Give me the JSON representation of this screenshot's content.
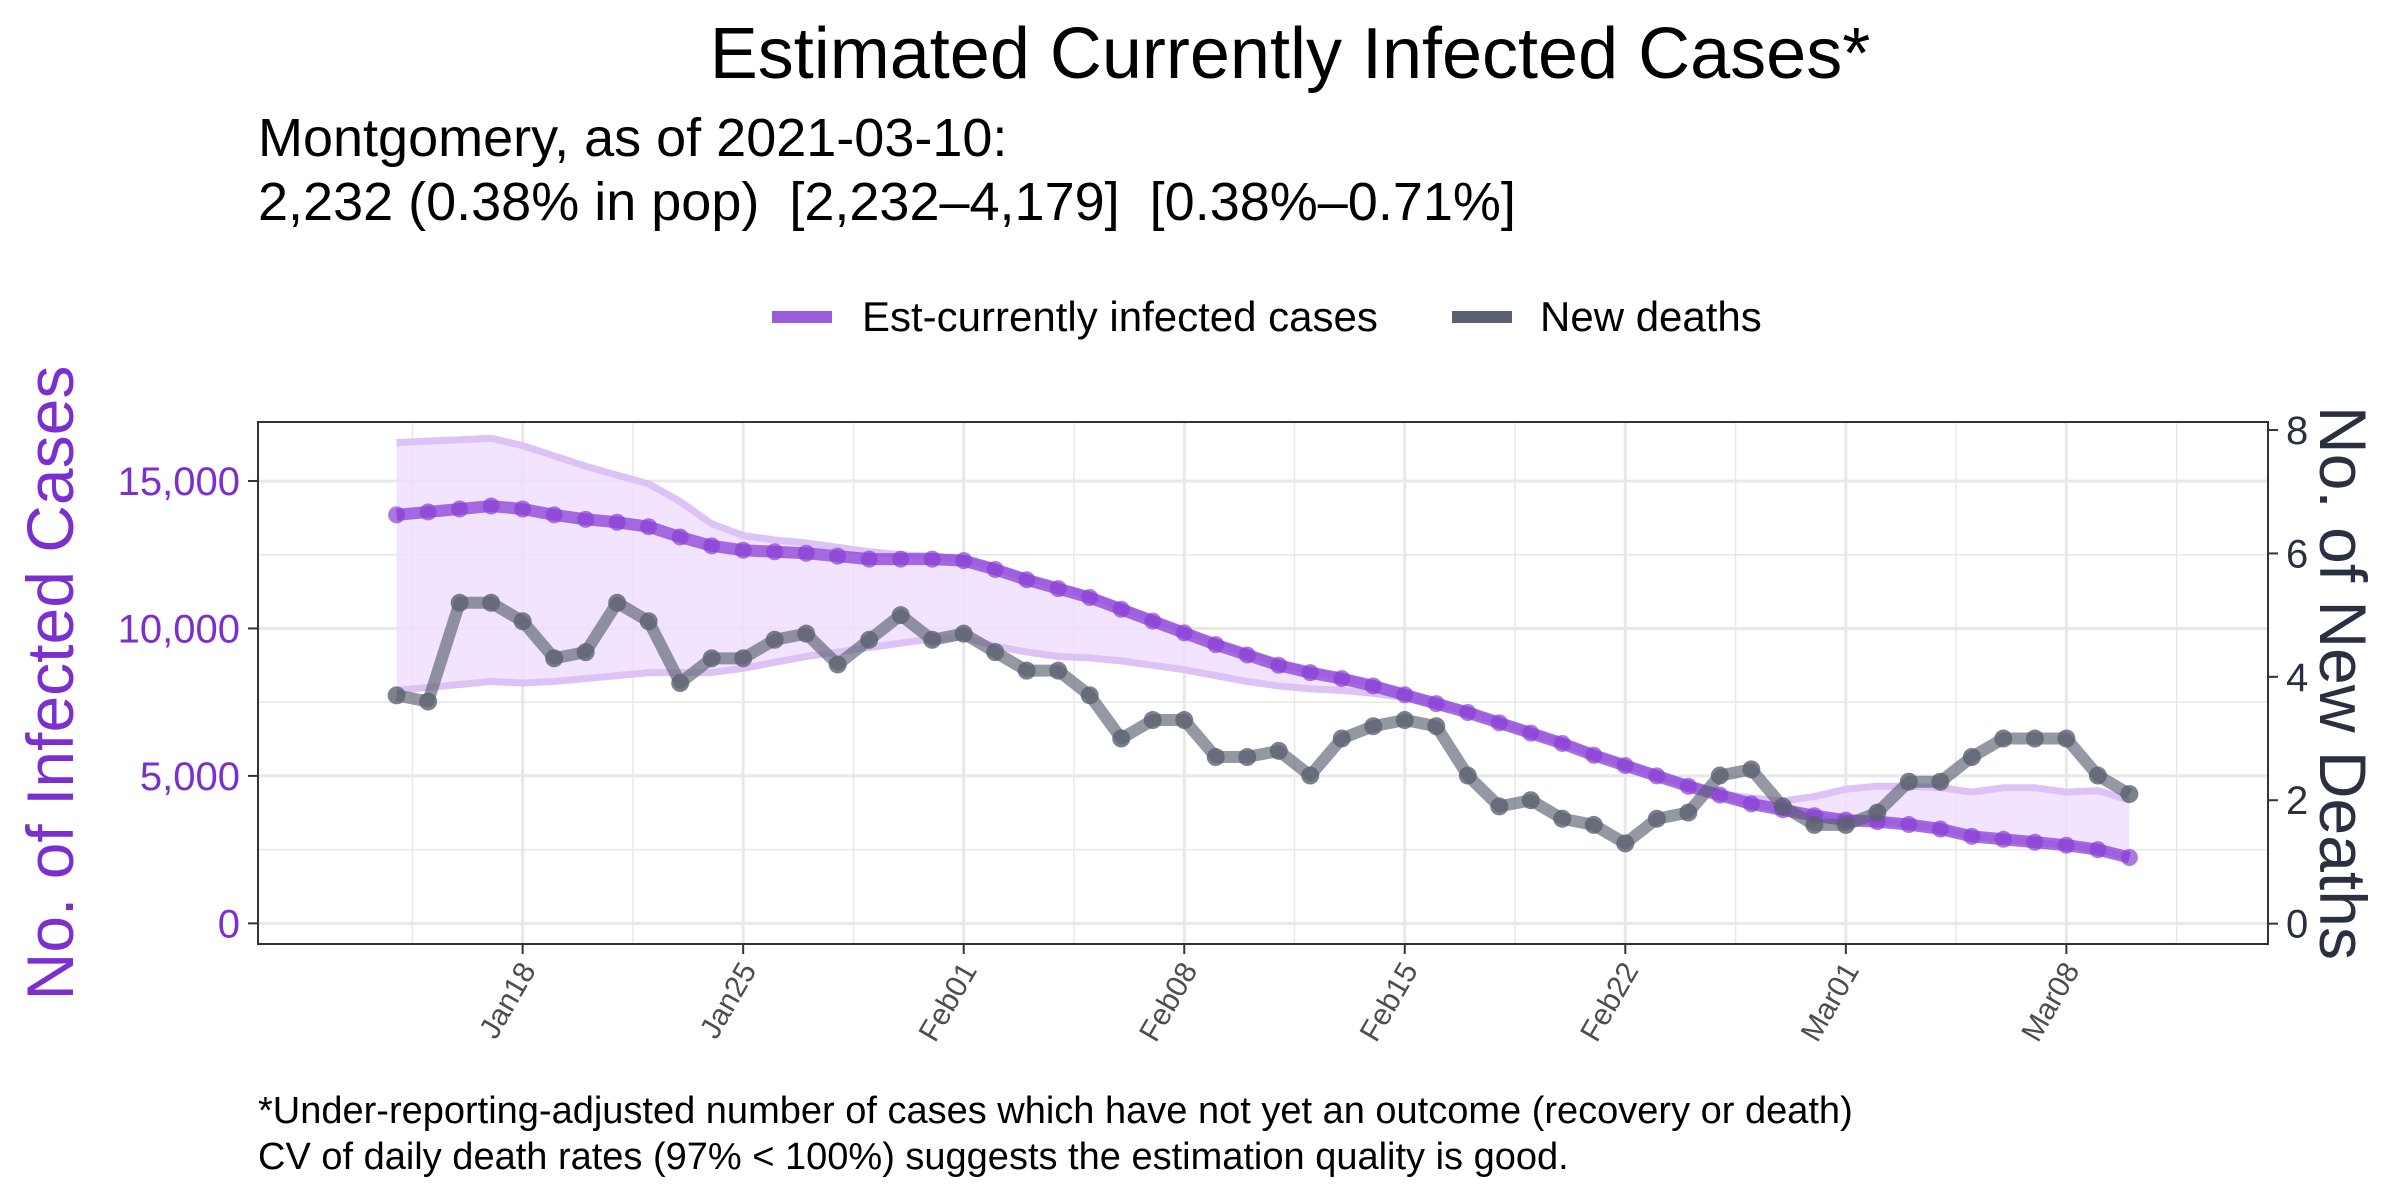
{
  "title": "Estimated Currently Infected Cases*",
  "subtitle_lines": [
    "Montgomery, as of 2021-03-10:",
    "2,232 (0.38% in pop)  [2,232–4,179]  [0.38%–0.71%]"
  ],
  "footnote_lines": [
    "*Under-reporting-adjusted number of cases which have not yet an outcome (recovery or death)",
    "CV of daily death rates (97% < 100%) suggests the estimation quality is good."
  ],
  "colors": {
    "cases": "#8a3fd6",
    "cases_band": "#efdcff",
    "cases_band_edge": "#dcc2f5",
    "deaths": "#5b6170",
    "left_axis_text": "#7b2fce",
    "right_axis_text": "#2a3040",
    "grid": "#e8e8e8"
  },
  "chart_data": {
    "type": "line",
    "legend": {
      "placement": "top",
      "entries": [
        "Est-currently infected cases",
        "New deaths"
      ]
    },
    "grid": true,
    "x": {
      "start_date": "2021-01-14",
      "end_date": "2021-03-10",
      "tick_labels": [
        "Jan18",
        "Jan25",
        "Feb01",
        "Feb08",
        "Feb15",
        "Feb22",
        "Mar01",
        "Mar08"
      ],
      "tick_dates": [
        "2021-01-18",
        "2021-01-25",
        "2021-02-01",
        "2021-02-08",
        "2021-02-15",
        "2021-02-22",
        "2021-03-01",
        "2021-03-08"
      ]
    },
    "y_left": {
      "label": "No. of Infected Cases",
      "range": [
        -700,
        17000
      ],
      "ticks": [
        0,
        5000,
        10000,
        15000
      ],
      "tick_labels": [
        "0",
        "5,000",
        "10,000",
        "15,000"
      ]
    },
    "y_right": {
      "label": "No. of New Deaths",
      "range": [
        -0.33,
        8.13
      ],
      "ticks": [
        0,
        2,
        4,
        6,
        8
      ],
      "tick_labels": [
        "0",
        "2",
        "4",
        "6",
        "8"
      ]
    },
    "series": [
      {
        "name": "Est-currently infected cases",
        "axis": "left",
        "values": [
          13850,
          13950,
          14050,
          14150,
          14050,
          13850,
          13700,
          13600,
          13450,
          13100,
          12800,
          12650,
          12600,
          12550,
          12450,
          12350,
          12350,
          12350,
          12300,
          12000,
          11650,
          11350,
          11050,
          10650,
          10250,
          9850,
          9450,
          9100,
          8750,
          8500,
          8300,
          8050,
          7750,
          7450,
          7150,
          6800,
          6450,
          6100,
          5700,
          5350,
          5000,
          4650,
          4350,
          4050,
          3850,
          3650,
          3500,
          3450,
          3350,
          3200,
          2950,
          2850,
          2750,
          2650,
          2500,
          2232
        ],
        "lower": [
          7900,
          8000,
          8100,
          8200,
          8150,
          8200,
          8300,
          8400,
          8500,
          8500,
          8500,
          8650,
          8850,
          9050,
          9200,
          9350,
          9500,
          9650,
          9700,
          9400,
          9200,
          9050,
          9000,
          8900,
          8750,
          8600,
          8400,
          8200,
          8050,
          7950,
          7900,
          7800,
          7650,
          7450,
          7150,
          6800,
          6450,
          6100,
          5700,
          5350,
          5000,
          4650,
          4350,
          4050,
          3850,
          3650,
          3500,
          3450,
          3350,
          3200,
          2950,
          2850,
          2750,
          2650,
          2500,
          2232
        ],
        "upper": [
          16300,
          16350,
          16400,
          16450,
          16200,
          15850,
          15500,
          15200,
          14900,
          14300,
          13550,
          13150,
          13000,
          12900,
          12750,
          12600,
          12500,
          12450,
          12350,
          12050,
          11700,
          11400,
          11100,
          10700,
          10300,
          9900,
          9500,
          9150,
          8800,
          8550,
          8350,
          8100,
          7800,
          7500,
          7200,
          6850,
          6500,
          6150,
          5750,
          5400,
          5050,
          4700,
          4400,
          4250,
          4150,
          4300,
          4550,
          4650,
          4650,
          4600,
          4450,
          4600,
          4600,
          4450,
          4500,
          4179
        ]
      },
      {
        "name": "New deaths",
        "axis": "right",
        "values": [
          3.7,
          3.6,
          5.2,
          5.2,
          4.9,
          4.3,
          4.4,
          5.2,
          4.9,
          3.9,
          4.3,
          4.3,
          4.6,
          4.7,
          4.2,
          4.6,
          5.0,
          4.6,
          4.7,
          4.4,
          4.1,
          4.1,
          3.7,
          3.0,
          3.3,
          3.3,
          2.7,
          2.7,
          2.8,
          2.4,
          3.0,
          3.2,
          3.3,
          3.2,
          2.4,
          1.9,
          2.0,
          1.7,
          1.6,
          1.3,
          1.7,
          1.8,
          2.4,
          2.5,
          1.9,
          1.6,
          1.6,
          1.8,
          2.3,
          2.3,
          2.7,
          3.0,
          3.0,
          3.0,
          2.4,
          2.1
        ]
      }
    ]
  }
}
